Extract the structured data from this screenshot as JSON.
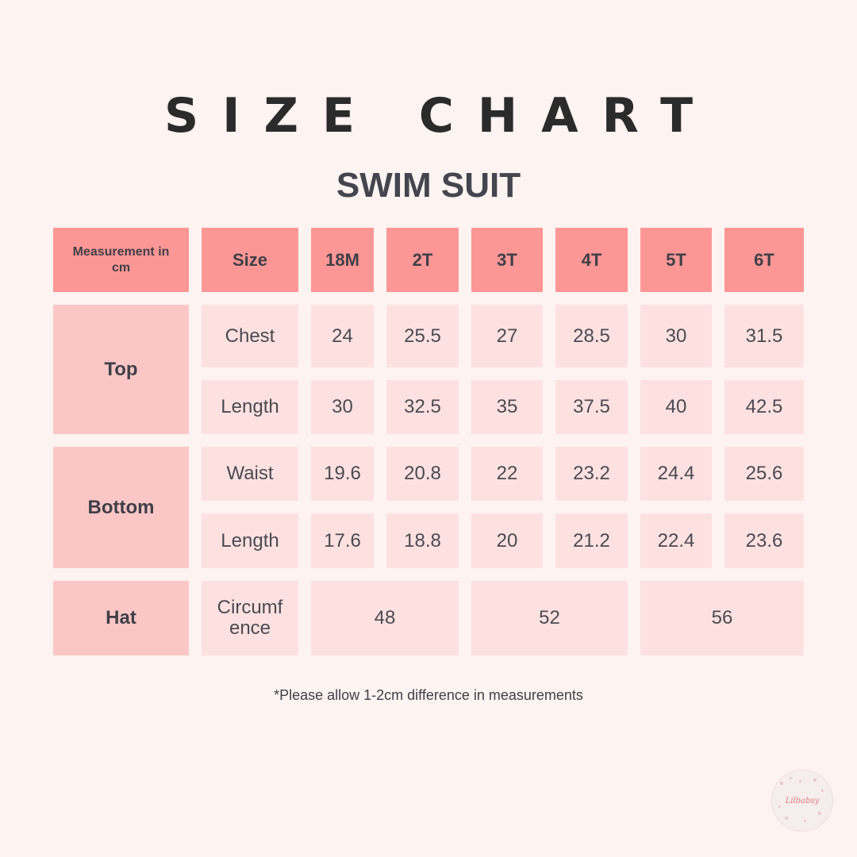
{
  "title": "SIZE CHART",
  "subtitle": "SWIM SUIT",
  "header": {
    "measurement": "Measurement in cm",
    "size": "Size",
    "sizes": [
      "18M",
      "2T",
      "3T",
      "4T",
      "5T",
      "6T"
    ]
  },
  "groups": {
    "top": "Top",
    "bottom": "Bottom",
    "hat": "Hat"
  },
  "rows": {
    "top_chest": {
      "label": "Chest",
      "values": [
        "24",
        "25.5",
        "27",
        "28.5",
        "30",
        "31.5"
      ]
    },
    "top_length": {
      "label": "Length",
      "values": [
        "30",
        "32.5",
        "35",
        "37.5",
        "40",
        "42.5"
      ]
    },
    "bottom_waist": {
      "label": "Waist",
      "values": [
        "19.6",
        "20.8",
        "22",
        "23.2",
        "24.4",
        "25.6"
      ]
    },
    "bottom_length": {
      "label": "Length",
      "values": [
        "17.6",
        "18.8",
        "20",
        "21.2",
        "22.4",
        "23.6"
      ]
    },
    "hat_circumference": {
      "label": "Circumf ence",
      "values": [
        "48",
        "52",
        "56"
      ]
    }
  },
  "note": "*Please allow 1-2cm difference in measurements",
  "logo_text": "Lilbabsy",
  "colors": {
    "background": "#fdf3f0",
    "header": "#fc9796",
    "group": "#fbc7c6",
    "cell": "#fde1e1",
    "text": "#3f3f48"
  }
}
